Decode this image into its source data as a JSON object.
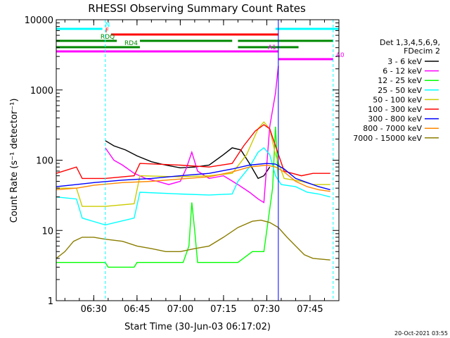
{
  "chart_data": {
    "type": "line",
    "title": "RHESSI Observing Summary Count Rates",
    "xlabel": "Start Time (30-Jun-03 06:17:02)",
    "ylabel": "Count Rate (s⁻¹ detector⁻¹)",
    "yscale": "log",
    "ylim": [
      1,
      10000
    ],
    "xlim": [
      "06:17",
      "07:55"
    ],
    "x_ticks": [
      "06:30",
      "06:45",
      "07:00",
      "07:15",
      "07:30",
      "07:45"
    ],
    "y_ticks": [
      "1",
      "10",
      "100",
      "1000",
      "10000"
    ],
    "grid": false,
    "legend_position": "right",
    "legend_header": [
      "Det 1,3,4,5,6,9,",
      "FDecim 2"
    ],
    "footer": "20-Oct-2021 03:55",
    "series": [
      {
        "name": "3 - 6 keV",
        "color": "#000000",
        "points": [
          [
            "06:34",
            190
          ],
          [
            "06:37",
            160
          ],
          [
            "06:41",
            140
          ],
          [
            "06:45",
            115
          ],
          [
            "06:50",
            95
          ],
          [
            "06:55",
            85
          ],
          [
            "07:00",
            78
          ],
          [
            "07:05",
            80
          ],
          [
            "07:10",
            85
          ],
          [
            "07:15",
            120
          ],
          [
            "07:18",
            150
          ],
          [
            "07:21",
            140
          ],
          [
            "07:24",
            90
          ],
          [
            "07:27",
            55
          ],
          [
            "07:29",
            60
          ],
          [
            "07:31",
            80
          ]
        ]
      },
      {
        "name": "6 - 12 keV",
        "color": "#ff00ff",
        "points": [
          [
            "06:34",
            150
          ],
          [
            "06:37",
            100
          ],
          [
            "06:40",
            85
          ],
          [
            "06:44",
            65
          ],
          [
            "06:48",
            55
          ],
          [
            "06:52",
            50
          ],
          [
            "06:56",
            45
          ],
          [
            "07:00",
            50
          ],
          [
            "07:02",
            75
          ],
          [
            "07:04",
            130
          ],
          [
            "07:06",
            70
          ],
          [
            "07:10",
            55
          ],
          [
            "07:15",
            60
          ],
          [
            "07:20",
            45
          ],
          [
            "07:24",
            35
          ],
          [
            "07:27",
            28
          ],
          [
            "07:29",
            25
          ],
          [
            "07:31",
            300
          ],
          [
            "07:33",
            900
          ],
          [
            "07:34",
            2200
          ]
        ]
      },
      {
        "name": "12 - 25 keV",
        "color": "#00ff00",
        "points": [
          [
            "06:17",
            3.5
          ],
          [
            "06:34",
            3.5
          ],
          [
            "06:35",
            3.0
          ],
          [
            "06:44",
            3.0
          ],
          [
            "06:45",
            3.5
          ],
          [
            "07:01",
            3.5
          ],
          [
            "07:03",
            6
          ],
          [
            "07:04",
            25
          ],
          [
            "07:05",
            10
          ],
          [
            "07:06",
            3.5
          ],
          [
            "07:20",
            3.5
          ],
          [
            "07:25",
            5
          ],
          [
            "07:29",
            5
          ],
          [
            "07:32",
            40
          ],
          [
            "07:33",
            300
          ],
          [
            "07:34",
            50
          ]
        ]
      },
      {
        "name": "25 - 50 keV",
        "color": "#00ffff",
        "points": [
          [
            "06:17",
            30
          ],
          [
            "06:24",
            28
          ],
          [
            "06:26",
            15
          ],
          [
            "06:34",
            12
          ],
          [
            "06:44",
            15
          ],
          [
            "06:46",
            35
          ],
          [
            "07:00",
            33
          ],
          [
            "07:10",
            32
          ],
          [
            "07:18",
            33
          ],
          [
            "07:20",
            50
          ],
          [
            "07:24",
            80
          ],
          [
            "07:27",
            130
          ],
          [
            "07:29",
            150
          ],
          [
            "07:31",
            120
          ],
          [
            "07:33",
            60
          ],
          [
            "07:35",
            45
          ],
          [
            "07:40",
            42
          ],
          [
            "07:44",
            35
          ],
          [
            "07:48",
            33
          ],
          [
            "07:52",
            30
          ]
        ]
      },
      {
        "name": "50 - 100 keV",
        "color": "#cccc00",
        "points": [
          [
            "06:17",
            40
          ],
          [
            "06:24",
            40
          ],
          [
            "06:26",
            22
          ],
          [
            "06:34",
            22
          ],
          [
            "06:44",
            24
          ],
          [
            "06:46",
            60
          ],
          [
            "07:00",
            58
          ],
          [
            "07:10",
            60
          ],
          [
            "07:18",
            65
          ],
          [
            "07:23",
            120
          ],
          [
            "07:27",
            280
          ],
          [
            "07:29",
            350
          ],
          [
            "07:31",
            280
          ],
          [
            "07:33",
            120
          ],
          [
            "07:36",
            55
          ],
          [
            "07:42",
            50
          ],
          [
            "07:46",
            45
          ],
          [
            "07:52",
            45
          ]
        ]
      },
      {
        "name": "100 - 300 keV",
        "color": "#ff0000",
        "points": [
          [
            "06:17",
            65
          ],
          [
            "06:24",
            80
          ],
          [
            "06:26",
            55
          ],
          [
            "06:34",
            55
          ],
          [
            "06:44",
            60
          ],
          [
            "06:46",
            90
          ],
          [
            "07:00",
            85
          ],
          [
            "07:10",
            80
          ],
          [
            "07:18",
            90
          ],
          [
            "07:22",
            160
          ],
          [
            "07:26",
            260
          ],
          [
            "07:29",
            320
          ],
          [
            "07:31",
            280
          ],
          [
            "07:33",
            160
          ],
          [
            "07:36",
            70
          ],
          [
            "07:42",
            60
          ],
          [
            "07:46",
            65
          ],
          [
            "07:52",
            65
          ]
        ]
      },
      {
        "name": "300 - 800 keV",
        "color": "#0000ff",
        "points": [
          [
            "06:17",
            42
          ],
          [
            "06:24",
            45
          ],
          [
            "06:30",
            48
          ],
          [
            "06:40",
            52
          ],
          [
            "06:50",
            55
          ],
          [
            "07:00",
            60
          ],
          [
            "07:10",
            65
          ],
          [
            "07:18",
            75
          ],
          [
            "07:24",
            85
          ],
          [
            "07:30",
            90
          ],
          [
            "07:33",
            88
          ],
          [
            "07:36",
            75
          ],
          [
            "07:40",
            55
          ],
          [
            "07:44",
            48
          ],
          [
            "07:48",
            42
          ],
          [
            "07:52",
            38
          ]
        ]
      },
      {
        "name": "800 - 7000 keV",
        "color": "#ff8800",
        "points": [
          [
            "06:17",
            38
          ],
          [
            "06:24",
            40
          ],
          [
            "06:30",
            44
          ],
          [
            "06:40",
            48
          ],
          [
            "06:50",
            50
          ],
          [
            "07:00",
            54
          ],
          [
            "07:10",
            58
          ],
          [
            "07:18",
            68
          ],
          [
            "07:24",
            80
          ],
          [
            "07:30",
            85
          ],
          [
            "07:33",
            80
          ],
          [
            "07:36",
            68
          ],
          [
            "07:40",
            50
          ],
          [
            "07:44",
            42
          ],
          [
            "07:48",
            38
          ],
          [
            "07:52",
            36
          ]
        ]
      },
      {
        "name": "7000 - 15000 keV",
        "color": "#8b7d00",
        "points": [
          [
            "06:17",
            4
          ],
          [
            "06:20",
            5
          ],
          [
            "06:23",
            7
          ],
          [
            "06:26",
            8
          ],
          [
            "06:30",
            8
          ],
          [
            "06:34",
            7.5
          ],
          [
            "06:40",
            7
          ],
          [
            "06:45",
            6
          ],
          [
            "06:50",
            5.5
          ],
          [
            "06:55",
            5
          ],
          [
            "07:00",
            5
          ],
          [
            "07:05",
            5.5
          ],
          [
            "07:10",
            6
          ],
          [
            "07:15",
            8
          ],
          [
            "07:20",
            11
          ],
          [
            "07:25",
            13.5
          ],
          [
            "07:28",
            14
          ],
          [
            "07:31",
            13
          ],
          [
            "07:34",
            11
          ],
          [
            "07:37",
            8
          ],
          [
            "07:40",
            6
          ],
          [
            "07:43",
            4.5
          ],
          [
            "07:46",
            4
          ],
          [
            "07:52",
            3.8
          ]
        ]
      }
    ],
    "flag_bars": [
      {
        "label": "N",
        "color": "#00ffff",
        "label_side": "after",
        "segments": [
          [
            "06:17",
            "06:33"
          ],
          [
            "07:33",
            "07:55"
          ]
        ]
      },
      {
        "label": "F",
        "color": "#ff0000",
        "label_side": "before",
        "segments": [
          [
            "06:36",
            "07:34"
          ]
        ]
      },
      {
        "label": "RDQ",
        "color": "#008800",
        "label_side": "before",
        "segments": [
          [
            "06:17",
            "06:38"
          ],
          [
            "06:46",
            "07:18"
          ],
          [
            "07:20",
            "07:53"
          ]
        ]
      },
      {
        "label": "RD4",
        "color": "#008800",
        "label_side": "before",
        "segments": [
          [
            "06:17",
            "06:46"
          ],
          [
            "07:20",
            "07:41"
          ]
        ]
      },
      {
        "label": "A1",
        "color": "#ff00ff",
        "label_side": "before",
        "segments": [
          [
            "06:17",
            "07:34"
          ]
        ]
      },
      {
        "label": "A0",
        "color": "#ff00ff",
        "label_side": "after",
        "segments": [
          [
            "07:34",
            "07:53"
          ]
        ]
      }
    ],
    "vertical_markers": [
      {
        "x": "06:34",
        "color": "#00ffff",
        "dashed": true
      },
      {
        "x": "07:34",
        "color": "#0000ff",
        "dashed": false
      },
      {
        "x": "07:53",
        "color": "#00ffff",
        "dashed": true
      }
    ]
  }
}
